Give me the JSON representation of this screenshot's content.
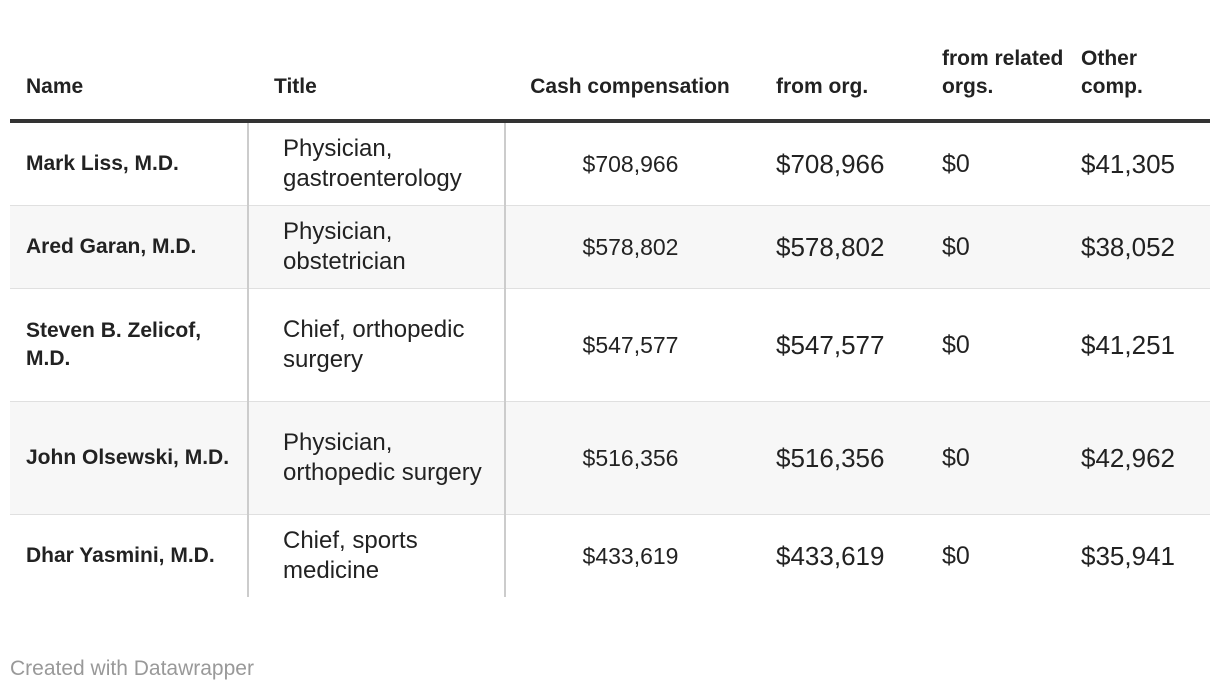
{
  "chart_data": {
    "type": "table",
    "columns": [
      "Name",
      "Title",
      "Cash compensation",
      "from org.",
      "from related orgs.",
      "Other comp."
    ],
    "rows": [
      {
        "name": "Mark Liss, M.D.",
        "title": "Physician, gastroenterology",
        "cash": "$708,966",
        "org": "$708,966",
        "related": "$0",
        "other": "$41,305"
      },
      {
        "name": "Ared Garan, M.D.",
        "title": "Physician, obstetrician",
        "cash": "$578,802",
        "org": "$578,802",
        "related": "$0",
        "other": "$38,052"
      },
      {
        "name": "Steven B. Zelicof, M.D.",
        "title": "Chief, orthopedic surgery",
        "cash": "$547,577",
        "org": "$547,577",
        "related": "$0",
        "other": "$41,251"
      },
      {
        "name": "John Olsewski, M.D.",
        "title": "Physician, orthopedic surgery",
        "cash": "$516,356",
        "org": "$516,356",
        "related": "$0",
        "other": "$42,962"
      },
      {
        "name": "Dhar Yasmini, M.D.",
        "title": "Chief, sports medicine",
        "cash": "$433,619",
        "org": "$433,619",
        "related": "$0",
        "other": "$35,941"
      }
    ]
  },
  "footer": {
    "credit": "Created with Datawrapper"
  }
}
